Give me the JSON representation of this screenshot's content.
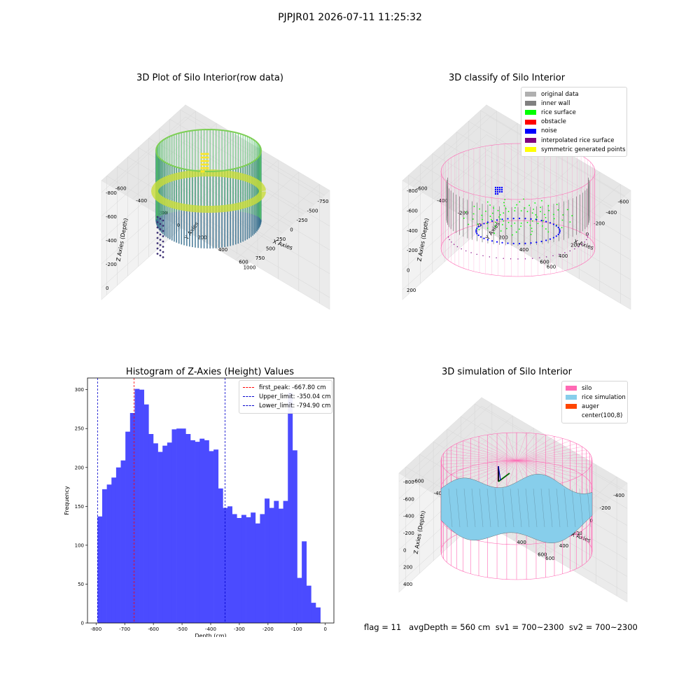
{
  "suptitle": "PJPJR01 2026-07-11 11:25:32",
  "footer": "flag = 11   avgDepth = 560 cm  sv1 = 700~2300  sv2 = 700~2300",
  "colors": {
    "hist_bar": "#4b4bff",
    "first_peak": "#ff0000",
    "limit_line": "#0000cc",
    "silo": "#ff69b4",
    "rice_sim": "#87ceeb",
    "auger": "#ff4500",
    "orig": "#b0b0b0",
    "inner_wall": "#808080",
    "rice_surface": "#00ff00",
    "obstacle": "#ff0000",
    "noise": "#0000ff",
    "interp": "#800080",
    "symmetric": "#ffff00"
  },
  "chart_data": [
    {
      "type": "scatter",
      "title": "3D Plot of Silo Interior(row data)",
      "xlabel": "X Axies",
      "ylabel": "Y Axies",
      "zlabel": "Z Axies (Depth)",
      "x_ticks": [
        "-750",
        "-500",
        "-250",
        "0",
        "250",
        "500",
        "750",
        "1000"
      ],
      "y_ticks": [
        "-600",
        "-400",
        "-200",
        "0",
        "200",
        "400",
        "600"
      ],
      "z_ticks": [
        "0",
        "-200",
        "-400",
        "-600",
        "-800"
      ],
      "colormap": "viridis"
    },
    {
      "type": "scatter",
      "title": "3D classify of Silo Interior",
      "xlabel": "X Axies",
      "ylabel": "Y Axies",
      "zlabel": "Z Axies (Depth)",
      "x_ticks": [
        "-600",
        "-400",
        "-200",
        "0",
        "200",
        "400",
        "600"
      ],
      "y_ticks": [
        "-600",
        "-400",
        "-200",
        "0",
        "200",
        "400",
        "600"
      ],
      "z_ticks": [
        "200",
        "0",
        "-200",
        "-400",
        "-600",
        "-800"
      ],
      "legend": [
        "original data",
        "inner wall",
        "rice surface",
        "obstacle",
        "noise",
        "interpolated rice surface",
        "symmetric generated points"
      ]
    },
    {
      "type": "bar",
      "title": "Histogram of Z-Axies (Height) Values",
      "xlabel": "Depth (cm)",
      "ylabel": "Frequency",
      "xlim": [
        -830,
        30
      ],
      "ylim": [
        0,
        315
      ],
      "x_ticks": [
        -800,
        -700,
        -600,
        -500,
        -400,
        -300,
        -200,
        -100,
        0
      ],
      "y_ticks": [
        0,
        50,
        100,
        150,
        200,
        250,
        300
      ],
      "bin_start": -794.9,
      "bin_width": 16.2,
      "values": [
        137,
        172,
        178,
        187,
        200,
        209,
        246,
        270,
        301,
        300,
        281,
        243,
        231,
        220,
        228,
        232,
        249,
        250,
        250,
        243,
        235,
        233,
        237,
        235,
        221,
        223,
        173,
        148,
        150,
        140,
        135,
        139,
        136,
        142,
        128,
        140,
        160,
        148,
        157,
        147,
        157,
        296,
        222,
        58,
        105,
        48,
        26,
        20
      ],
      "vlines": [
        {
          "label": "first_peak: -667.80 cm",
          "x": -667.8,
          "color": "#ff0000"
        },
        {
          "label": "Upper_limit: -350.04 cm",
          "x": -350.04,
          "color": "#0000cc"
        },
        {
          "label": "Lower_limit: -794.90 cm",
          "x": -794.9,
          "color": "#0000cc"
        }
      ]
    },
    {
      "type": "area",
      "title": "3D simulation of Silo Interior",
      "xlabel": "X Axies",
      "ylabel": "Y Axies",
      "zlabel": "Z Axies (Depth)",
      "x_ticks": [
        "-400",
        "-200",
        "0",
        "200",
        "400",
        "600"
      ],
      "y_ticks": [
        "-600",
        "-400",
        "-200",
        "0",
        "200",
        "400",
        "600"
      ],
      "z_ticks": [
        "400",
        "200",
        "0",
        "-200",
        "-400",
        "-600",
        "-800"
      ],
      "legend": [
        "silo",
        "rice simulation",
        "auger",
        "center(100,8)"
      ]
    }
  ]
}
